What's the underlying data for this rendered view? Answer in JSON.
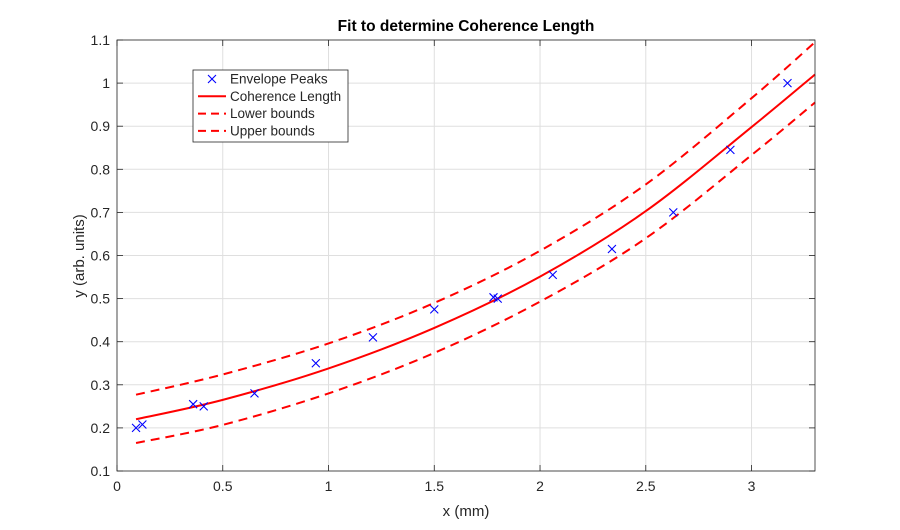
{
  "chart_data": {
    "type": "line",
    "title": "Fit to determine Coherence Length",
    "xlabel": "x (mm)",
    "ylabel": "y (arb. units)",
    "xlim": [
      0,
      3.3
    ],
    "ylim": [
      0.1,
      1.1
    ],
    "x_ticks": [
      "0",
      "0.5",
      "1",
      "1.5",
      "2",
      "2.5",
      "3"
    ],
    "y_ticks": [
      "0.1",
      "0.2",
      "0.3",
      "0.4",
      "0.5",
      "0.6",
      "0.7",
      "0.8",
      "0.9",
      "1",
      "1.1"
    ],
    "grid": true,
    "legend_position": "top-left",
    "series": [
      {
        "name": "Envelope Peaks",
        "kind": "scatter",
        "marker": "x",
        "color": "#0000ff",
        "x": [
          0.09,
          0.12,
          0.36,
          0.41,
          0.65,
          0.94,
          1.21,
          1.5,
          1.78,
          1.8,
          2.06,
          2.34,
          2.63,
          2.9,
          3.17
        ],
        "y": [
          0.2,
          0.208,
          0.255,
          0.25,
          0.28,
          0.35,
          0.41,
          0.475,
          0.503,
          0.5,
          0.555,
          0.615,
          0.7,
          0.845,
          1.0
        ]
      },
      {
        "name": "Coherence Length",
        "kind": "line",
        "dash": "solid",
        "color": "#ff0000",
        "x": [
          0.09,
          0.5,
          1.0,
          1.5,
          2.0,
          2.5,
          3.0,
          3.3
        ],
        "y": [
          0.22,
          0.265,
          0.338,
          0.432,
          0.551,
          0.703,
          0.898,
          1.02
        ]
      },
      {
        "name": "Lower bounds",
        "kind": "line",
        "dash": "dashed",
        "color": "#ff0000",
        "x": [
          0.09,
          0.5,
          1.0,
          1.5,
          2.0,
          2.5,
          3.0,
          3.3
        ],
        "y": [
          0.165,
          0.207,
          0.28,
          0.374,
          0.493,
          0.64,
          0.833,
          0.955
        ]
      },
      {
        "name": "Upper bounds",
        "kind": "line",
        "dash": "dashed",
        "color": "#ff0000",
        "x": [
          0.09,
          0.5,
          1.0,
          1.5,
          2.0,
          2.5,
          3.0,
          3.3
        ],
        "y": [
          0.277,
          0.324,
          0.396,
          0.49,
          0.611,
          0.765,
          0.965,
          1.095
        ]
      }
    ]
  }
}
